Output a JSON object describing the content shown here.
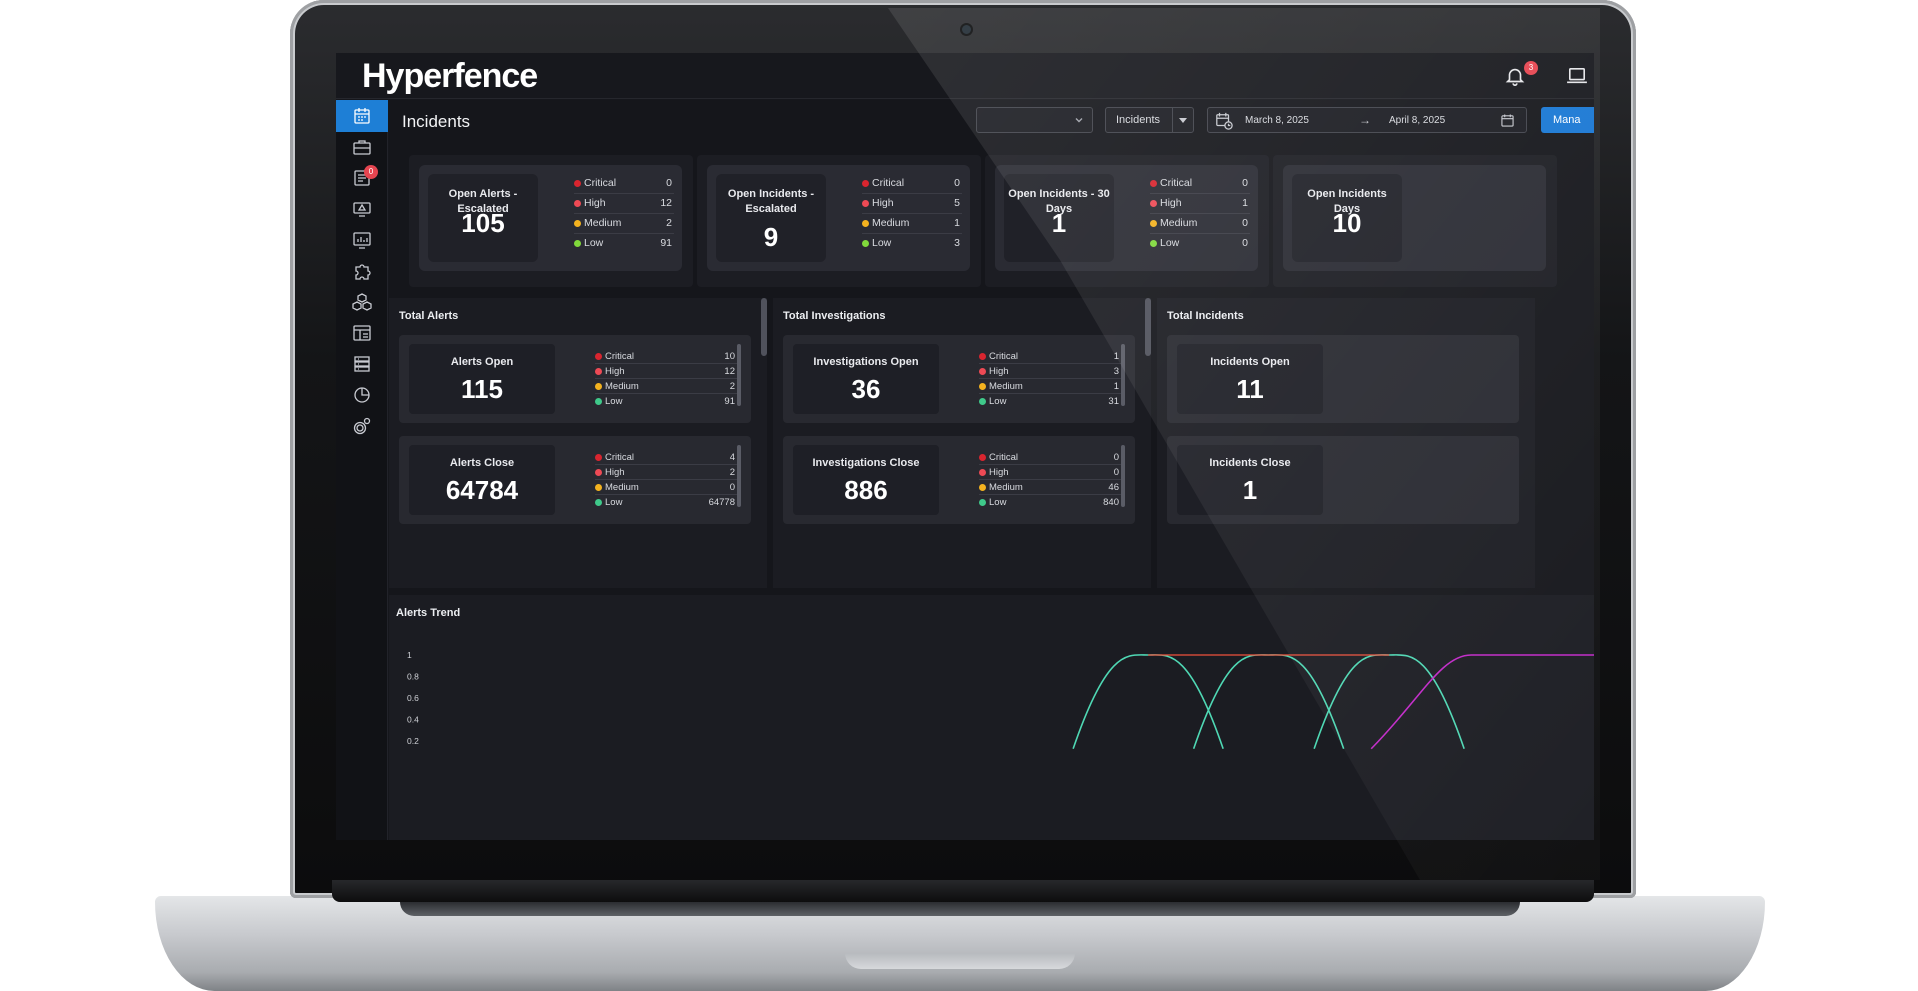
{
  "app": {
    "brand": "Hyperfence",
    "notification_count": "3"
  },
  "sidebar": {
    "items": [
      {
        "name": "incidents-nav",
        "icon": "calendar-grid-icon",
        "active": true
      },
      {
        "name": "cases-nav",
        "icon": "briefcase-icon"
      },
      {
        "name": "alerts-list-nav",
        "icon": "list-check-icon",
        "badge": "0"
      },
      {
        "name": "monitor-alert-nav",
        "icon": "monitor-warning-icon"
      },
      {
        "name": "analytics-nav",
        "icon": "chart-monitor-icon"
      },
      {
        "name": "integrations-nav",
        "icon": "puzzle-icon"
      },
      {
        "name": "assets-nav",
        "icon": "cubes-icon"
      },
      {
        "name": "dashboard-nav",
        "icon": "layout-icon"
      },
      {
        "name": "servers-nav",
        "icon": "server-list-icon"
      },
      {
        "name": "reports-nav",
        "icon": "pie-chart-icon"
      },
      {
        "name": "settings-nav",
        "icon": "gears-icon"
      }
    ]
  },
  "header": {
    "title": "Incidents",
    "filter_select": "",
    "type_select": "Incidents",
    "date_from": "March 8, 2025",
    "date_to": "April 8, 2025",
    "manage_label": "Mana"
  },
  "severity_colors": {
    "Critical": "#d9252f",
    "High": "#ee4a55",
    "Medium": "#f3b21f",
    "Low": "#80d93b",
    "LowAlt": "#3fc98a"
  },
  "kpis": [
    {
      "label": "Open Alerts - Escalated",
      "value": "105",
      "rows": [
        [
          "Critical",
          "0"
        ],
        [
          "High",
          "12"
        ],
        [
          "Medium",
          "2"
        ],
        [
          "Low",
          "91"
        ]
      ]
    },
    {
      "label": "Open Incidents - Escalated",
      "value": "9",
      "rows": [
        [
          "Critical",
          "0"
        ],
        [
          "High",
          "5"
        ],
        [
          "Medium",
          "1"
        ],
        [
          "Low",
          "3"
        ]
      ]
    },
    {
      "label": "Open Incidents - 30 Days",
      "value": "1",
      "rows": [
        [
          "Critical",
          "0"
        ],
        [
          "High",
          "1"
        ],
        [
          "Medium",
          "0"
        ],
        [
          "Low",
          "0"
        ]
      ]
    },
    {
      "label": "Open Incidents Days",
      "value": "10"
    }
  ],
  "totals": [
    {
      "title": "Total Alerts",
      "cards": [
        {
          "label": "Alerts Open",
          "value": "115",
          "rows": [
            [
              "Critical",
              "10"
            ],
            [
              "High",
              "12"
            ],
            [
              "Medium",
              "2"
            ],
            [
              "Low",
              "91"
            ]
          ]
        },
        {
          "label": "Alerts Close",
          "value": "64784",
          "rows": [
            [
              "Critical",
              "4"
            ],
            [
              "High",
              "2"
            ],
            [
              "Medium",
              "0"
            ],
            [
              "Low",
              "64778"
            ]
          ]
        }
      ]
    },
    {
      "title": "Total Investigations",
      "cards": [
        {
          "label": "Investigations Open",
          "value": "36",
          "rows": [
            [
              "Critical",
              "1"
            ],
            [
              "High",
              "3"
            ],
            [
              "Medium",
              "1"
            ],
            [
              "Low",
              "31"
            ]
          ]
        },
        {
          "label": "Investigations Close",
          "value": "886",
          "rows": [
            [
              "Critical",
              "0"
            ],
            [
              "High",
              "0"
            ],
            [
              "Medium",
              "46"
            ],
            [
              "Low",
              "840"
            ]
          ]
        }
      ]
    },
    {
      "title": "Total Incidents",
      "cards": [
        {
          "label": "Incidents Open",
          "value": "11"
        },
        {
          "label": "Incidents Close",
          "value": "1"
        }
      ]
    }
  ],
  "chart_data": {
    "type": "line",
    "title": "Alerts Trend",
    "yticks": [
      "1",
      "0.8",
      "0.6",
      "0.4",
      "0.2"
    ],
    "ylim": [
      0,
      1
    ],
    "series": [
      {
        "color": "#4fd8b4",
        "peaks": [
          0.63,
          0.73,
          0.83
        ]
      },
      {
        "color": "#f0513d",
        "flat": [
          0.63,
          0.83
        ]
      },
      {
        "color": "#c229c8",
        "rise_from": 0.84
      }
    ]
  }
}
